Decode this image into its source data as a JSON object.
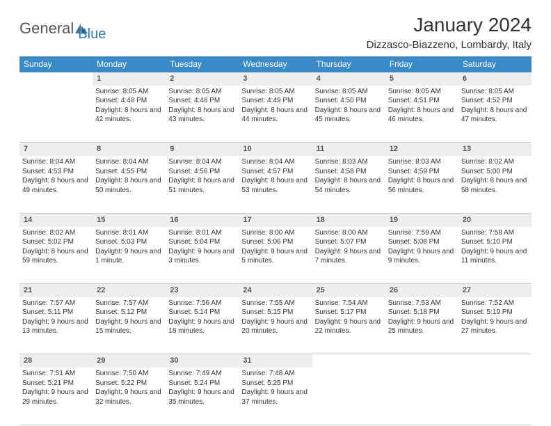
{
  "brand": {
    "name1": "General",
    "name2": "Blue"
  },
  "title": "January 2024",
  "location": "Dizzasco-Biazzeno, Lombardy, Italy",
  "colors": {
    "header_bg": "#3a8ac8",
    "header_text": "#ffffff",
    "daynum_bg": "#eeeeee",
    "row_border": "#3a8ac8",
    "cell_border": "#cccccc",
    "text": "#333333",
    "brand_blue": "#2b7bbf"
  },
  "day_headers": [
    "Sunday",
    "Monday",
    "Tuesday",
    "Wednesday",
    "Thursday",
    "Friday",
    "Saturday"
  ],
  "weeks": [
    {
      "nums": [
        "",
        "1",
        "2",
        "3",
        "4",
        "5",
        "6"
      ],
      "cells": [
        null,
        {
          "sunrise": "Sunrise: 8:05 AM",
          "sunset": "Sunset: 4:48 PM",
          "daylight": "Daylight: 8 hours and 42 minutes."
        },
        {
          "sunrise": "Sunrise: 8:05 AM",
          "sunset": "Sunset: 4:48 PM",
          "daylight": "Daylight: 8 hours and 43 minutes."
        },
        {
          "sunrise": "Sunrise: 8:05 AM",
          "sunset": "Sunset: 4:49 PM",
          "daylight": "Daylight: 8 hours and 44 minutes."
        },
        {
          "sunrise": "Sunrise: 8:05 AM",
          "sunset": "Sunset: 4:50 PM",
          "daylight": "Daylight: 8 hours and 45 minutes."
        },
        {
          "sunrise": "Sunrise: 8:05 AM",
          "sunset": "Sunset: 4:51 PM",
          "daylight": "Daylight: 8 hours and 46 minutes."
        },
        {
          "sunrise": "Sunrise: 8:05 AM",
          "sunset": "Sunset: 4:52 PM",
          "daylight": "Daylight: 8 hours and 47 minutes."
        }
      ]
    },
    {
      "nums": [
        "7",
        "8",
        "9",
        "10",
        "11",
        "12",
        "13"
      ],
      "cells": [
        {
          "sunrise": "Sunrise: 8:04 AM",
          "sunset": "Sunset: 4:53 PM",
          "daylight": "Daylight: 8 hours and 49 minutes."
        },
        {
          "sunrise": "Sunrise: 8:04 AM",
          "sunset": "Sunset: 4:55 PM",
          "daylight": "Daylight: 8 hours and 50 minutes."
        },
        {
          "sunrise": "Sunrise: 8:04 AM",
          "sunset": "Sunset: 4:56 PM",
          "daylight": "Daylight: 8 hours and 51 minutes."
        },
        {
          "sunrise": "Sunrise: 8:04 AM",
          "sunset": "Sunset: 4:57 PM",
          "daylight": "Daylight: 8 hours and 53 minutes."
        },
        {
          "sunrise": "Sunrise: 8:03 AM",
          "sunset": "Sunset: 4:58 PM",
          "daylight": "Daylight: 8 hours and 54 minutes."
        },
        {
          "sunrise": "Sunrise: 8:03 AM",
          "sunset": "Sunset: 4:59 PM",
          "daylight": "Daylight: 8 hours and 56 minutes."
        },
        {
          "sunrise": "Sunrise: 8:02 AM",
          "sunset": "Sunset: 5:00 PM",
          "daylight": "Daylight: 8 hours and 58 minutes."
        }
      ]
    },
    {
      "nums": [
        "14",
        "15",
        "16",
        "17",
        "18",
        "19",
        "20"
      ],
      "cells": [
        {
          "sunrise": "Sunrise: 8:02 AM",
          "sunset": "Sunset: 5:02 PM",
          "daylight": "Daylight: 8 hours and 59 minutes."
        },
        {
          "sunrise": "Sunrise: 8:01 AM",
          "sunset": "Sunset: 5:03 PM",
          "daylight": "Daylight: 9 hours and 1 minute."
        },
        {
          "sunrise": "Sunrise: 8:01 AM",
          "sunset": "Sunset: 5:04 PM",
          "daylight": "Daylight: 9 hours and 3 minutes."
        },
        {
          "sunrise": "Sunrise: 8:00 AM",
          "sunset": "Sunset: 5:06 PM",
          "daylight": "Daylight: 9 hours and 5 minutes."
        },
        {
          "sunrise": "Sunrise: 8:00 AM",
          "sunset": "Sunset: 5:07 PM",
          "daylight": "Daylight: 9 hours and 7 minutes."
        },
        {
          "sunrise": "Sunrise: 7:59 AM",
          "sunset": "Sunset: 5:08 PM",
          "daylight": "Daylight: 9 hours and 9 minutes."
        },
        {
          "sunrise": "Sunrise: 7:58 AM",
          "sunset": "Sunset: 5:10 PM",
          "daylight": "Daylight: 9 hours and 11 minutes."
        }
      ]
    },
    {
      "nums": [
        "21",
        "22",
        "23",
        "24",
        "25",
        "26",
        "27"
      ],
      "cells": [
        {
          "sunrise": "Sunrise: 7:57 AM",
          "sunset": "Sunset: 5:11 PM",
          "daylight": "Daylight: 9 hours and 13 minutes."
        },
        {
          "sunrise": "Sunrise: 7:57 AM",
          "sunset": "Sunset: 5:12 PM",
          "daylight": "Daylight: 9 hours and 15 minutes."
        },
        {
          "sunrise": "Sunrise: 7:56 AM",
          "sunset": "Sunset: 5:14 PM",
          "daylight": "Daylight: 9 hours and 18 minutes."
        },
        {
          "sunrise": "Sunrise: 7:55 AM",
          "sunset": "Sunset: 5:15 PM",
          "daylight": "Daylight: 9 hours and 20 minutes."
        },
        {
          "sunrise": "Sunrise: 7:54 AM",
          "sunset": "Sunset: 5:17 PM",
          "daylight": "Daylight: 9 hours and 22 minutes."
        },
        {
          "sunrise": "Sunrise: 7:53 AM",
          "sunset": "Sunset: 5:18 PM",
          "daylight": "Daylight: 9 hours and 25 minutes."
        },
        {
          "sunrise": "Sunrise: 7:52 AM",
          "sunset": "Sunset: 5:19 PM",
          "daylight": "Daylight: 9 hours and 27 minutes."
        }
      ]
    },
    {
      "nums": [
        "28",
        "29",
        "30",
        "31",
        "",
        "",
        ""
      ],
      "cells": [
        {
          "sunrise": "Sunrise: 7:51 AM",
          "sunset": "Sunset: 5:21 PM",
          "daylight": "Daylight: 9 hours and 29 minutes."
        },
        {
          "sunrise": "Sunrise: 7:50 AM",
          "sunset": "Sunset: 5:22 PM",
          "daylight": "Daylight: 9 hours and 32 minutes."
        },
        {
          "sunrise": "Sunrise: 7:49 AM",
          "sunset": "Sunset: 5:24 PM",
          "daylight": "Daylight: 9 hours and 35 minutes."
        },
        {
          "sunrise": "Sunrise: 7:48 AM",
          "sunset": "Sunset: 5:25 PM",
          "daylight": "Daylight: 9 hours and 37 minutes."
        },
        null,
        null,
        null
      ]
    }
  ]
}
